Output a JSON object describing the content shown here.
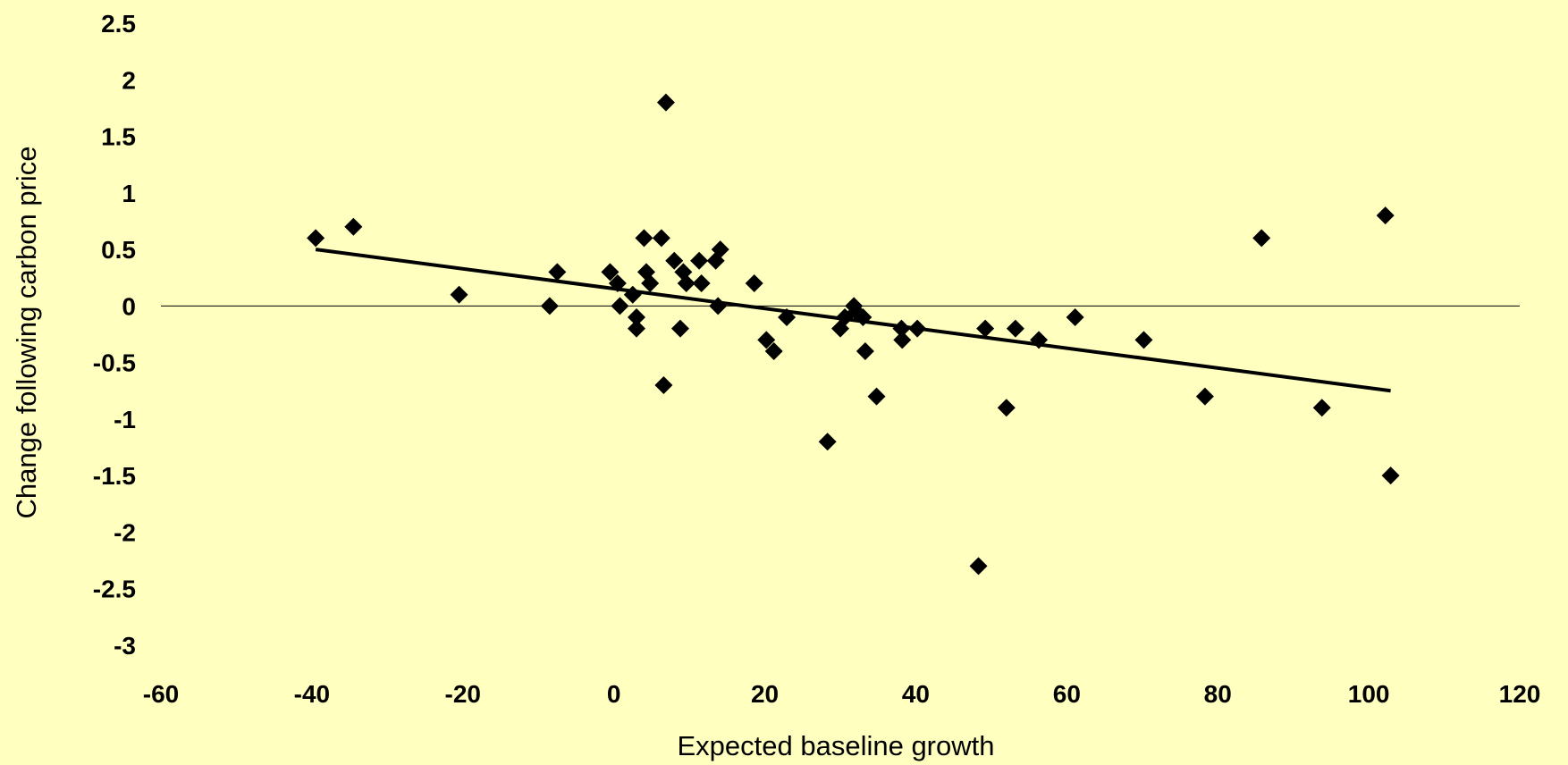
{
  "chart_data": {
    "type": "scatter",
    "xlabel": "Expected baseline growth",
    "ylabel": "Change following carbon price",
    "xlim": [
      -60,
      120
    ],
    "ylim": [
      -3,
      2.5
    ],
    "x_ticks": [
      -60,
      -40,
      -20,
      0,
      20,
      40,
      60,
      80,
      100,
      120
    ],
    "y_ticks": [
      2.5,
      2,
      1.5,
      1,
      0.5,
      0,
      -0.5,
      -1,
      -1.5,
      -2,
      -2.5,
      -3
    ],
    "x_tick_labels": [
      "-60",
      "-40",
      "-20",
      "0",
      "20",
      "40",
      "60",
      "80",
      "100",
      "120"
    ],
    "y_tick_labels": [
      "2.5",
      "2",
      "1.5",
      "1",
      "0.5",
      "0",
      "-0.5",
      "-1",
      "-1.5",
      "-2",
      "-2.5",
      "-3"
    ],
    "grid": false,
    "zero_line": true,
    "colors": {
      "background": "#FFFFC0",
      "marker": "#000000",
      "trend": "#000000"
    },
    "points": [
      {
        "x": -39.5,
        "y": 0.6
      },
      {
        "x": -34.5,
        "y": 0.7
      },
      {
        "x": -20.5,
        "y": 0.1
      },
      {
        "x": -8.5,
        "y": 0.0
      },
      {
        "x": -7.5,
        "y": 0.3
      },
      {
        "x": -0.5,
        "y": 0.3
      },
      {
        "x": 0.5,
        "y": 0.2
      },
      {
        "x": 0.8,
        "y": 0.0
      },
      {
        "x": 2.5,
        "y": 0.1
      },
      {
        "x": 3.0,
        "y": -0.1
      },
      {
        "x": 3.0,
        "y": -0.2
      },
      {
        "x": 4.0,
        "y": 0.6
      },
      {
        "x": 4.3,
        "y": 0.3
      },
      {
        "x": 4.8,
        "y": 0.2
      },
      {
        "x": 6.3,
        "y": 0.6
      },
      {
        "x": 6.6,
        "y": -0.7
      },
      {
        "x": 6.9,
        "y": 1.8
      },
      {
        "x": 8.0,
        "y": 0.4
      },
      {
        "x": 8.8,
        "y": -0.2
      },
      {
        "x": 9.2,
        "y": 0.3
      },
      {
        "x": 9.6,
        "y": 0.2
      },
      {
        "x": 11.3,
        "y": 0.4
      },
      {
        "x": 11.6,
        "y": 0.2
      },
      {
        "x": 13.5,
        "y": 0.4
      },
      {
        "x": 13.8,
        "y": 0.0
      },
      {
        "x": 14.1,
        "y": 0.5
      },
      {
        "x": 18.6,
        "y": 0.2
      },
      {
        "x": 20.2,
        "y": -0.3
      },
      {
        "x": 21.2,
        "y": -0.4
      },
      {
        "x": 22.9,
        "y": -0.1
      },
      {
        "x": 28.3,
        "y": -1.2
      },
      {
        "x": 30.0,
        "y": -0.2
      },
      {
        "x": 30.6,
        "y": -0.1
      },
      {
        "x": 31.8,
        "y": 0.0
      },
      {
        "x": 32.1,
        "y": -0.05
      },
      {
        "x": 33.0,
        "y": -0.1
      },
      {
        "x": 33.3,
        "y": -0.4
      },
      {
        "x": 34.8,
        "y": -0.8
      },
      {
        "x": 38.1,
        "y": -0.2
      },
      {
        "x": 38.2,
        "y": -0.3
      },
      {
        "x": 40.2,
        "y": -0.2
      },
      {
        "x": 48.3,
        "y": -2.3
      },
      {
        "x": 49.2,
        "y": -0.2
      },
      {
        "x": 52.0,
        "y": -0.9
      },
      {
        "x": 53.2,
        "y": -0.2
      },
      {
        "x": 56.3,
        "y": -0.3
      },
      {
        "x": 61.1,
        "y": -0.1
      },
      {
        "x": 70.2,
        "y": -0.3
      },
      {
        "x": 78.3,
        "y": -0.8
      },
      {
        "x": 85.8,
        "y": 0.6
      },
      {
        "x": 93.8,
        "y": -0.9
      },
      {
        "x": 102.2,
        "y": 0.8
      },
      {
        "x": 102.9,
        "y": -1.5
      }
    ],
    "trendline": {
      "x": [
        -39.5,
        102.9
      ],
      "y": [
        0.5,
        -0.75
      ]
    }
  }
}
